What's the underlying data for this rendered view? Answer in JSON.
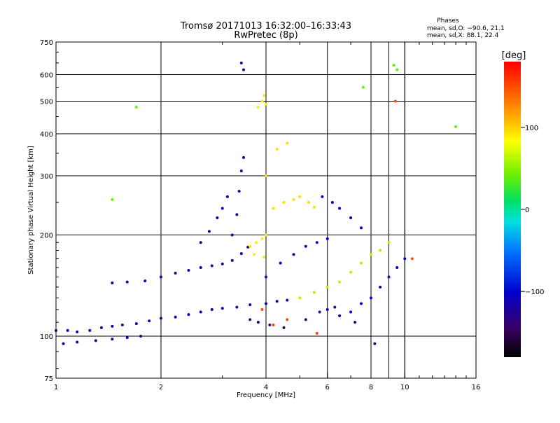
{
  "chart_data": {
    "type": "scatter",
    "title": "Tromsø 20171013 16:32:00–16:33:43",
    "subtitle": "RwPretec (8p)",
    "xlabel": "Frequency [MHz]",
    "ylabel": "Stationary phase Virtual Height [km]",
    "xscale": "log",
    "yscale": "log",
    "xlim": [
      1,
      16
    ],
    "ylim": [
      75,
      750
    ],
    "x_ticks": [
      1,
      2,
      4,
      6,
      8,
      10,
      16
    ],
    "x_tick_labels": [
      "1",
      "2",
      "4",
      "6",
      "8",
      "10",
      "16"
    ],
    "y_ticks": [
      75,
      100,
      200,
      300,
      400,
      500,
      600,
      750
    ],
    "y_tick_labels": [
      "75",
      "100",
      "200",
      "300",
      "400",
      "500",
      "600",
      "750"
    ],
    "grid": true,
    "phases": {
      "title": "Phases",
      "line_o": "mean, sd,O: −90.6, 21.1",
      "line_x": "mean, sd,X:  88.1, 22.4"
    },
    "colorbar": {
      "label": "[deg]",
      "range": [
        -180,
        180
      ],
      "ticks": [
        100,
        0,
        -100
      ],
      "tick_labels": [
        "100",
        "0",
        "−100"
      ]
    },
    "series": [
      {
        "phase": -110,
        "points": [
          [
            1.0,
            104
          ],
          [
            1.08,
            104
          ],
          [
            1.15,
            103
          ],
          [
            1.25,
            104
          ],
          [
            1.35,
            106
          ],
          [
            1.45,
            107
          ],
          [
            1.55,
            108
          ],
          [
            1.7,
            109
          ],
          [
            1.85,
            111
          ],
          [
            2.0,
            113
          ],
          [
            2.2,
            114
          ],
          [
            2.4,
            116
          ],
          [
            2.6,
            118
          ],
          [
            2.8,
            120
          ],
          [
            3.0,
            121
          ],
          [
            3.3,
            122
          ],
          [
            3.6,
            124
          ],
          [
            4.0,
            125
          ],
          [
            4.3,
            127
          ],
          [
            4.6,
            128
          ]
        ]
      },
      {
        "phase": -115,
        "points": [
          [
            1.05,
            95
          ],
          [
            1.15,
            96
          ],
          [
            1.3,
            97
          ],
          [
            1.45,
            98
          ],
          [
            1.6,
            99
          ],
          [
            1.75,
            100
          ]
        ]
      },
      {
        "phase": -120,
        "points": [
          [
            1.45,
            144
          ],
          [
            1.6,
            145
          ],
          [
            1.8,
            146
          ],
          [
            2.0,
            150
          ],
          [
            2.2,
            154
          ],
          [
            2.4,
            157
          ],
          [
            2.6,
            160
          ],
          [
            2.8,
            162
          ],
          [
            3.0,
            164
          ],
          [
            3.2,
            168
          ],
          [
            3.4,
            176
          ],
          [
            3.55,
            184
          ]
        ]
      },
      {
        "phase": -115,
        "points": [
          [
            2.6,
            190
          ],
          [
            2.75,
            205
          ],
          [
            2.9,
            225
          ],
          [
            3.0,
            240
          ],
          [
            3.1,
            260
          ]
        ]
      },
      {
        "phase": -120,
        "points": [
          [
            3.2,
            200
          ],
          [
            3.3,
            230
          ],
          [
            3.35,
            270
          ],
          [
            3.4,
            310
          ],
          [
            3.45,
            340
          ],
          [
            3.4,
            650
          ],
          [
            3.45,
            620
          ]
        ]
      },
      {
        "phase": 90,
        "points": [
          [
            3.6,
            185
          ],
          [
            3.75,
            190
          ],
          [
            3.9,
            195
          ],
          [
            4.0,
            200
          ],
          [
            3.7,
            175
          ],
          [
            3.95,
            172
          ],
          [
            3.8,
            480
          ],
          [
            3.9,
            500
          ],
          [
            3.95,
            520
          ],
          [
            4.0,
            490
          ]
        ]
      },
      {
        "phase": 95,
        "points": [
          [
            4.2,
            240
          ],
          [
            4.5,
            250
          ],
          [
            4.8,
            255
          ],
          [
            5.0,
            260
          ],
          [
            5.3,
            250
          ],
          [
            5.5,
            242
          ],
          [
            4.0,
            300
          ],
          [
            4.3,
            360
          ],
          [
            4.6,
            375
          ]
        ]
      },
      {
        "phase": -100,
        "points": [
          [
            4.0,
            150
          ],
          [
            4.4,
            165
          ],
          [
            4.8,
            175
          ],
          [
            5.2,
            185
          ],
          [
            5.6,
            190
          ],
          [
            6.0,
            195
          ],
          [
            5.8,
            260
          ],
          [
            6.2,
            250
          ],
          [
            6.5,
            240
          ],
          [
            7.0,
            225
          ],
          [
            7.5,
            210
          ]
        ]
      },
      {
        "phase": 60,
        "points": [
          [
            5.0,
            130
          ],
          [
            5.5,
            135
          ],
          [
            6.0,
            140
          ],
          [
            6.5,
            145
          ],
          [
            7.0,
            155
          ],
          [
            7.5,
            165
          ],
          [
            8.0,
            175
          ],
          [
            8.5,
            180
          ],
          [
            9.0,
            190
          ]
        ]
      },
      {
        "phase": -105,
        "points": [
          [
            6.0,
            120
          ],
          [
            6.5,
            115
          ],
          [
            7.0,
            118
          ],
          [
            7.5,
            125
          ],
          [
            8.0,
            130
          ],
          [
            8.5,
            140
          ],
          [
            9.0,
            150
          ],
          [
            9.5,
            160
          ],
          [
            10.0,
            170
          ]
        ]
      },
      {
        "phase": -140,
        "points": [
          [
            3.6,
            112
          ],
          [
            3.8,
            110
          ],
          [
            4.1,
            108
          ],
          [
            4.5,
            106
          ],
          [
            5.2,
            112
          ],
          [
            5.7,
            118
          ],
          [
            6.3,
            122
          ],
          [
            7.2,
            110
          ],
          [
            8.2,
            95
          ]
        ]
      },
      {
        "phase": 40,
        "points": [
          [
            9.3,
            640
          ],
          [
            9.5,
            620
          ],
          [
            7.6,
            550
          ],
          [
            14.0,
            420
          ],
          [
            1.7,
            480
          ],
          [
            1.45,
            255
          ]
        ]
      },
      {
        "phase": 150,
        "points": [
          [
            3.9,
            120
          ],
          [
            4.2,
            108
          ],
          [
            4.6,
            112
          ],
          [
            5.6,
            102
          ],
          [
            9.4,
            500
          ],
          [
            10.5,
            170
          ]
        ]
      }
    ]
  }
}
